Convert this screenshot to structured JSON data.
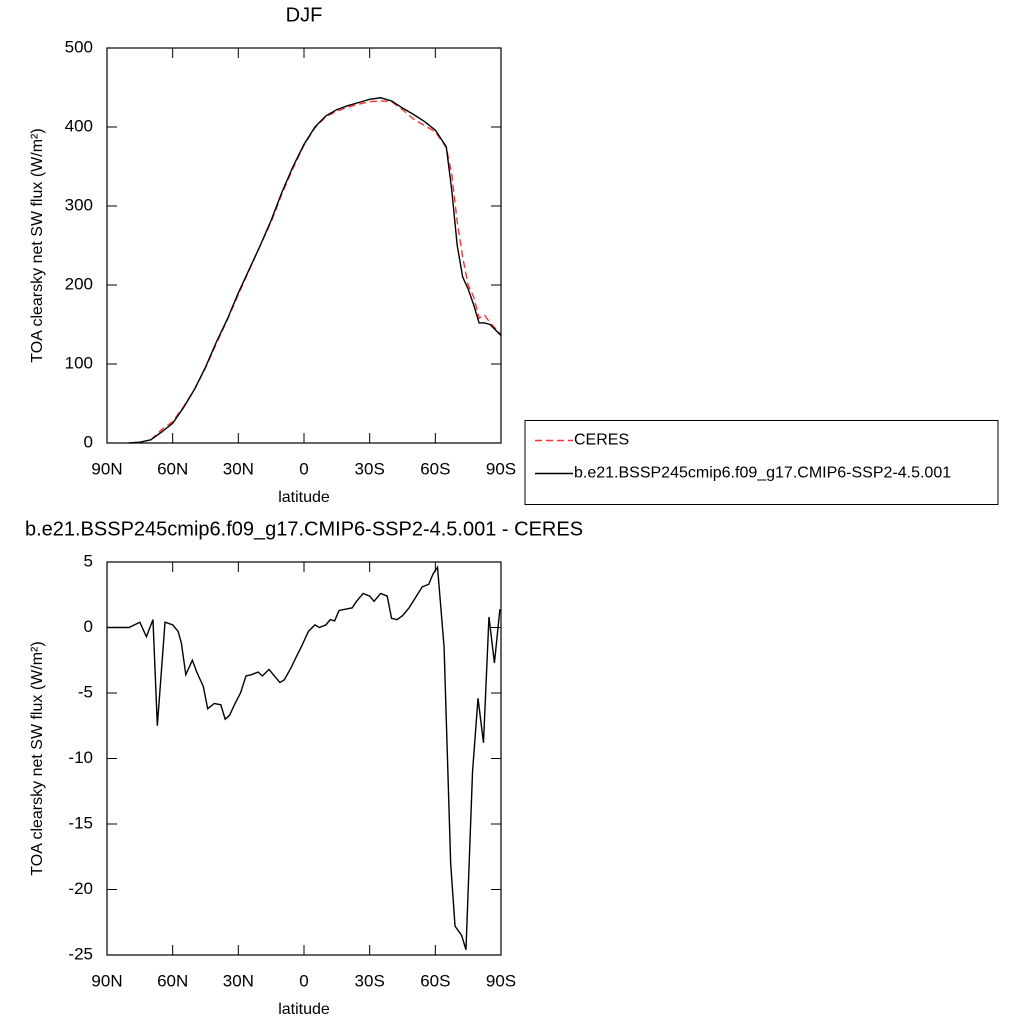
{
  "chart_data": [
    {
      "type": "line",
      "title": "DJF",
      "xlabel": "latitude",
      "ylabel": "TOA clearsky net SW flux (W/m²)",
      "x": [
        80,
        75,
        70,
        65,
        60,
        55,
        50,
        45,
        40,
        35,
        30,
        25,
        20,
        15,
        10,
        5,
        0,
        -5,
        -10,
        -15,
        -20,
        -25,
        -30,
        -35,
        -40,
        -45,
        -50,
        -55,
        -60,
        -65,
        -67.5,
        -70,
        -72.5,
        -75,
        -77.5,
        -80,
        -82.5,
        -85,
        -87.5,
        -90
      ],
      "series": [
        {
          "name": "CERES",
          "color": "#ff3030",
          "dashed": true,
          "values": [
            null,
            null,
            4,
            17,
            27,
            46,
            68,
            95,
            126,
            156,
            188,
            219,
            250,
            280,
            316,
            348,
            377,
            399,
            413,
            420,
            425,
            429,
            432,
            433,
            432,
            422,
            410,
            402,
            394,
            374,
            340,
            280,
            235,
            200,
            185,
            158,
            162,
            152,
            145,
            137
          ]
        },
        {
          "name": "b.e21.BSSP245cmip6.f09_g17.CMIP6-SSP2-4.5.001",
          "color": "#000000",
          "dashed": false,
          "values": [
            0,
            1,
            4,
            14,
            25,
            45,
            68,
            96,
            128,
            157,
            190,
            220,
            250,
            282,
            318,
            350,
            378,
            400,
            414,
            422,
            427,
            431,
            435,
            437,
            433,
            424,
            416,
            407,
            396,
            375,
            320,
            250,
            210,
            195,
            175,
            152,
            152,
            150,
            143,
            136
          ]
        }
      ],
      "xlim": [
        90,
        -90
      ],
      "xticks": [
        {
          "value": 90,
          "label": "90N"
        },
        {
          "value": 60,
          "label": "60N"
        },
        {
          "value": 30,
          "label": "30N"
        },
        0,
        {
          "value": -30,
          "label": "30S"
        },
        {
          "value": -60,
          "label": "60S"
        },
        {
          "value": -90,
          "label": "90S"
        }
      ],
      "ylim": [
        0,
        500
      ],
      "yticks": [
        0,
        100,
        200,
        300,
        400,
        500
      ],
      "legend": "right"
    },
    {
      "type": "line",
      "title": "b.e21.BSSP245cmip6.f09_g17.CMIP6-SSP2-4.5.001 - CERES",
      "xlabel": "latitude",
      "ylabel": "TOA clearsky net SW flux (W/m²)",
      "x": [
        90,
        80,
        75,
        72,
        69,
        67,
        63.5,
        60,
        57.5,
        56,
        54,
        51,
        49,
        46,
        44,
        41,
        38,
        36,
        34,
        31.5,
        29,
        26.5,
        24,
        21,
        19,
        16,
        14,
        11,
        9,
        6,
        4,
        1,
        -2,
        -5,
        -7,
        -10,
        -12,
        -14,
        -16,
        -19,
        -22,
        -24,
        -27,
        -30,
        -32,
        -35,
        -38,
        -40,
        -42.5,
        -45,
        -48,
        -51,
        -54,
        -57,
        -59,
        -61,
        -64,
        -67,
        -69,
        -72,
        -74,
        -77,
        -79.5,
        -82,
        -84.5,
        -87,
        -89.5
      ],
      "series": [
        {
          "color": "#000000",
          "dashed": false,
          "values": [
            0,
            0,
            0.4,
            -0.7,
            0.6,
            -7.5,
            0.4,
            0.2,
            -0.3,
            -1.2,
            -3.6,
            -2.5,
            -3.4,
            -4.5,
            -6.2,
            -5.8,
            -5.9,
            -7,
            -6.7,
            -5.8,
            -5,
            -3.7,
            -3.6,
            -3.4,
            -3.7,
            -3.2,
            -3.6,
            -4.2,
            -4,
            -3.1,
            -2.4,
            -1.4,
            -0.3,
            0.2,
            0,
            0.2,
            0.6,
            0.5,
            1.3,
            1.4,
            1.5,
            2,
            2.6,
            2.4,
            2,
            2.6,
            2.4,
            0.7,
            0.6,
            0.9,
            1.5,
            2.3,
            3.1,
            3.3,
            4.1,
            4.6,
            -1.5,
            -18,
            -22.8,
            -23.5,
            -24.6,
            -11,
            -5.4,
            -8.8,
            0.8,
            -2.7,
            1.4
          ]
        }
      ],
      "xlim": [
        90,
        -90
      ],
      "xticks": [
        {
          "value": 90,
          "label": "90N"
        },
        {
          "value": 60,
          "label": "60N"
        },
        {
          "value": 30,
          "label": "30N"
        },
        0,
        {
          "value": -30,
          "label": "30S"
        },
        {
          "value": -60,
          "label": "60S"
        },
        {
          "value": -90,
          "label": "90S"
        }
      ],
      "ylim": [
        -25,
        5
      ],
      "yticks": [
        -25,
        -20,
        -15,
        -10,
        -5,
        0,
        5
      ]
    }
  ]
}
